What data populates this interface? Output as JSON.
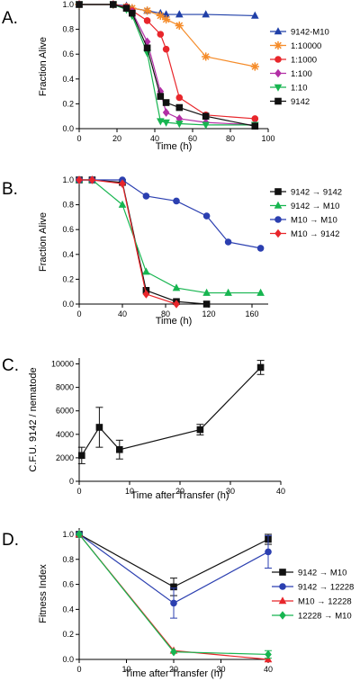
{
  "chart_data": [
    {
      "panel_label": "A.",
      "type": "line",
      "xlabel": "Time (h)",
      "ylabel": "Fraction Alive",
      "xlim": [
        0,
        100
      ],
      "ylim": [
        0,
        1.0
      ],
      "xticks": [
        0,
        20,
        40,
        60,
        80,
        100
      ],
      "yticks": [
        0.0,
        0.2,
        0.4,
        0.6,
        0.8,
        1.0
      ],
      "legend_position": "right",
      "series": [
        {
          "name": "9142-M10",
          "color": "#1f3fa8",
          "marker": "triangle-up",
          "x": [
            0,
            18,
            25,
            28,
            36,
            43,
            46,
            53,
            67,
            93
          ],
          "y": [
            1.0,
            1.0,
            0.99,
            0.97,
            0.95,
            0.93,
            0.92,
            0.92,
            0.92,
            0.91
          ]
        },
        {
          "name": "1:10000",
          "color": "#f58c2a",
          "marker": "asterisk",
          "x": [
            0,
            18,
            25,
            28,
            36,
            43,
            46,
            53,
            67,
            93
          ],
          "y": [
            1.0,
            1.0,
            0.98,
            0.97,
            0.95,
            0.91,
            0.88,
            0.83,
            0.58,
            0.5
          ]
        },
        {
          "name": "1:1000",
          "color": "#e8262b",
          "marker": "circle",
          "x": [
            0,
            18,
            25,
            28,
            36,
            43,
            46,
            53,
            67,
            93
          ],
          "y": [
            1.0,
            1.0,
            0.98,
            0.95,
            0.87,
            0.76,
            0.64,
            0.25,
            0.11,
            0.08
          ]
        },
        {
          "name": "1:100",
          "color": "#b22fa5",
          "marker": "diamond",
          "x": [
            0,
            18,
            25,
            28,
            36,
            43,
            46,
            53,
            67,
            93
          ],
          "y": [
            1.0,
            1.0,
            0.97,
            0.94,
            0.7,
            0.3,
            0.13,
            0.08,
            0.05,
            0.03
          ]
        },
        {
          "name": "1:10",
          "color": "#17b550",
          "marker": "triangle-down",
          "x": [
            0,
            18,
            25,
            28,
            36,
            43,
            46,
            53,
            67,
            93
          ],
          "y": [
            1.0,
            1.0,
            0.96,
            0.91,
            0.61,
            0.06,
            0.05,
            0.04,
            0.03,
            0.03
          ]
        },
        {
          "name": "9142",
          "color": "#111111",
          "marker": "square",
          "x": [
            0,
            18,
            25,
            28,
            36,
            43,
            46,
            53,
            67,
            93
          ],
          "y": [
            1.0,
            1.0,
            0.97,
            0.93,
            0.65,
            0.26,
            0.21,
            0.17,
            0.1,
            0.02
          ]
        }
      ]
    },
    {
      "panel_label": "B.",
      "type": "line",
      "xlabel": "Time (h)",
      "ylabel": "Fraction Alive",
      "xlim": [
        0,
        175
      ],
      "ylim": [
        0,
        1.0
      ],
      "xticks": [
        0,
        40,
        80,
        120,
        160
      ],
      "yticks": [
        0.0,
        0.2,
        0.4,
        0.6,
        0.8,
        1.0
      ],
      "legend_position": "right",
      "series": [
        {
          "name": "9142 → 9142",
          "color": "#111111",
          "marker": "square",
          "x": [
            0,
            12,
            40,
            62,
            90,
            118
          ],
          "y": [
            1.0,
            1.0,
            0.98,
            0.11,
            0.02,
            0.0
          ]
        },
        {
          "name": "9142 → M10",
          "color": "#17b550",
          "marker": "triangle-up",
          "x": [
            0,
            12,
            40,
            62,
            90,
            118,
            138,
            168
          ],
          "y": [
            1.0,
            1.0,
            0.8,
            0.26,
            0.13,
            0.09,
            0.09,
            0.09
          ]
        },
        {
          "name": "M10 → M10",
          "color": "#2b3fb0",
          "marker": "circle",
          "x": [
            0,
            12,
            40,
            62,
            90,
            118,
            138,
            168
          ],
          "y": [
            1.0,
            1.0,
            1.0,
            0.87,
            0.83,
            0.71,
            0.5,
            0.45
          ]
        },
        {
          "name": "M10 → 9142",
          "color": "#e8262b",
          "marker": "diamond",
          "x": [
            0,
            12,
            40,
            62,
            90
          ],
          "y": [
            1.0,
            1.0,
            0.97,
            0.08,
            0.0
          ]
        }
      ]
    },
    {
      "panel_label": "C.",
      "type": "line",
      "xlabel": "Time after Transfer (h)",
      "ylabel": "C.F.U. 9142 / nematode",
      "xlim": [
        0,
        40
      ],
      "ylim": [
        0,
        10500
      ],
      "xticks": [
        0,
        10,
        20,
        30,
        40
      ],
      "yticks": [
        0,
        2000,
        4000,
        6000,
        8000,
        10000
      ],
      "series": [
        {
          "name": "",
          "color": "#111111",
          "marker": "square",
          "x": [
            0.5,
            4,
            8,
            24,
            36
          ],
          "y": [
            2200,
            4600,
            2700,
            4400,
            9700
          ],
          "error": [
            700,
            1700,
            800,
            450,
            600
          ]
        }
      ]
    },
    {
      "panel_label": "D.",
      "type": "line",
      "xlabel": "Time after Transfer (h)",
      "ylabel": "Fitness Index",
      "xlim": [
        0,
        40
      ],
      "ylim": [
        0,
        1.05
      ],
      "xticks": [
        0,
        10,
        20,
        30,
        40
      ],
      "yticks": [
        0.0,
        0.2,
        0.4,
        0.6,
        0.8,
        1.0
      ],
      "legend_position": "right",
      "series": [
        {
          "name": "9142 → M10",
          "color": "#111111",
          "marker": "square",
          "x": [
            0,
            20,
            40
          ],
          "y": [
            1.0,
            0.58,
            0.96
          ],
          "error": [
            0,
            0.07,
            0.04
          ]
        },
        {
          "name": "9142 → 12228",
          "color": "#2b3fb0",
          "marker": "circle",
          "x": [
            0,
            20,
            40
          ],
          "y": [
            1.0,
            0.45,
            0.86
          ],
          "error": [
            0,
            0.12,
            0.13
          ]
        },
        {
          "name": "M10 → 12228",
          "color": "#e8262b",
          "marker": "triangle-up",
          "x": [
            0,
            20,
            40
          ],
          "y": [
            1.0,
            0.07,
            0.0
          ],
          "error": [
            0,
            0,
            0
          ]
        },
        {
          "name": "12228 → M10",
          "color": "#17b550",
          "marker": "diamond",
          "x": [
            0,
            20,
            40
          ],
          "y": [
            1.0,
            0.06,
            0.04
          ],
          "error": [
            0,
            0,
            0.03
          ]
        }
      ]
    }
  ]
}
